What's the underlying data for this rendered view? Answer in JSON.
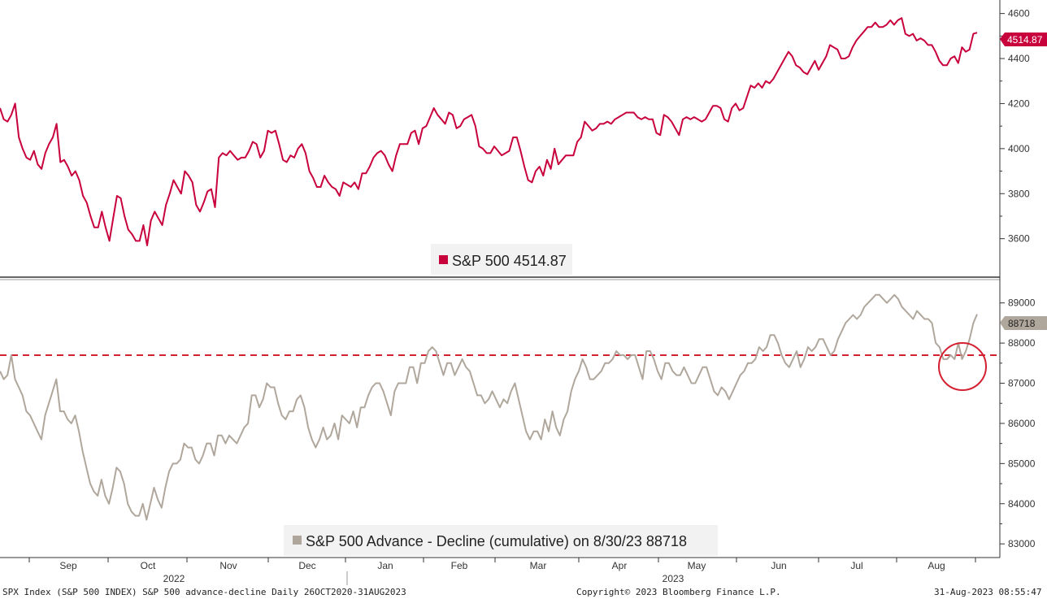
{
  "chart_data": [
    {
      "type": "line",
      "id": "spx",
      "series": [
        {
          "name": "S&P 500",
          "color": "#c8003c",
          "last_value": "4514.87",
          "legend": "S&P 500 4514.87",
          "values": [
            4180,
            4130,
            4120,
            4150,
            4200,
            4050,
            4000,
            3960,
            3950,
            3990,
            3930,
            3910,
            3980,
            4020,
            4050,
            4110,
            3940,
            3950,
            3920,
            3880,
            3900,
            3860,
            3790,
            3760,
            3700,
            3650,
            3650,
            3720,
            3650,
            3590,
            3690,
            3790,
            3780,
            3700,
            3640,
            3620,
            3590,
            3590,
            3660,
            3570,
            3680,
            3720,
            3690,
            3660,
            3750,
            3800,
            3860,
            3830,
            3800,
            3900,
            3880,
            3850,
            3750,
            3720,
            3760,
            3810,
            3820,
            3740,
            3960,
            3980,
            3970,
            3990,
            3970,
            3950,
            3960,
            3960,
            3990,
            4030,
            4020,
            3960,
            3990,
            4080,
            4070,
            4080,
            4020,
            3950,
            3940,
            3970,
            3960,
            4000,
            4020,
            3980,
            3900,
            3870,
            3830,
            3830,
            3880,
            3850,
            3830,
            3820,
            3790,
            3850,
            3840,
            3830,
            3850,
            3820,
            3890,
            3890,
            3920,
            3960,
            3980,
            3990,
            3970,
            3930,
            3900,
            3970,
            4020,
            4020,
            4020,
            4070,
            4080,
            4020,
            4090,
            4100,
            4140,
            4180,
            4150,
            4130,
            4110,
            4160,
            4150,
            4090,
            4100,
            4130,
            4140,
            4150,
            4100,
            4010,
            4000,
            3980,
            3980,
            4010,
            3990,
            3970,
            3980,
            3990,
            4050,
            4050,
            3990,
            3920,
            3860,
            3850,
            3900,
            3920,
            3880,
            3950,
            3910,
            4000,
            3930,
            3950,
            3970,
            3970,
            3970,
            4030,
            4050,
            4120,
            4100,
            4080,
            4090,
            4110,
            4110,
            4120,
            4110,
            4130,
            4140,
            4150,
            4160,
            4160,
            4160,
            4140,
            4130,
            4140,
            4130,
            4130,
            4070,
            4060,
            4150,
            4140,
            4120,
            4090,
            4060,
            4130,
            4140,
            4130,
            4140,
            4130,
            4120,
            4130,
            4160,
            4190,
            4190,
            4180,
            4130,
            4120,
            4180,
            4200,
            4170,
            4180,
            4230,
            4280,
            4270,
            4290,
            4270,
            4300,
            4290,
            4310,
            4340,
            4370,
            4400,
            4430,
            4410,
            4370,
            4360,
            4340,
            4330,
            4360,
            4390,
            4350,
            4380,
            4410,
            4460,
            4450,
            4440,
            4400,
            4400,
            4410,
            4450,
            4480,
            4500,
            4520,
            4540,
            4540,
            4560,
            4540,
            4540,
            4550,
            4570,
            4550,
            4570,
            4580,
            4510,
            4500,
            4510,
            4480,
            4490,
            4480,
            4460,
            4460,
            4430,
            4390,
            4370,
            4370,
            4400,
            4410,
            4380,
            4450,
            4430,
            4440,
            4510,
            4514.87
          ]
        }
      ],
      "ylim": [
        3440,
        4660
      ],
      "yticks": [
        3600,
        3800,
        4000,
        4200,
        4400,
        4600
      ],
      "ytick_labels": [
        "3600",
        "3800",
        "4000",
        "4200",
        "4400",
        "4600"
      ]
    },
    {
      "type": "line",
      "id": "advdecl",
      "series": [
        {
          "name": "S&P 500 Advance - Decline (cumulative)",
          "color": "#b0a79c",
          "last_value": "88718",
          "legend": "S&P 500 Advance - Decline (cumulative) on 8/30/23 88718",
          "values": [
            87300,
            87100,
            87200,
            87700,
            87100,
            86900,
            86700,
            86300,
            86200,
            86000,
            85800,
            85600,
            86200,
            86500,
            86800,
            87100,
            86300,
            86300,
            86100,
            86000,
            86200,
            85800,
            85300,
            84900,
            84500,
            84300,
            84200,
            84600,
            84200,
            84000,
            84400,
            84900,
            84800,
            84500,
            84000,
            83800,
            83700,
            83700,
            84000,
            83600,
            84000,
            84400,
            84100,
            83900,
            84400,
            84800,
            85000,
            85000,
            85100,
            85500,
            85400,
            85400,
            85100,
            85000,
            85200,
            85500,
            85500,
            85200,
            85700,
            85700,
            85500,
            85700,
            85600,
            85500,
            85700,
            85900,
            86000,
            86700,
            86700,
            86400,
            86600,
            87000,
            86900,
            86900,
            86500,
            86200,
            86100,
            86300,
            86300,
            86600,
            86700,
            86400,
            85900,
            85600,
            85400,
            85600,
            85900,
            85600,
            85700,
            86000,
            85600,
            86200,
            86100,
            86000,
            86300,
            85900,
            86400,
            86400,
            86700,
            86900,
            87000,
            87000,
            86800,
            86500,
            86200,
            86800,
            87000,
            87000,
            87000,
            87400,
            87400,
            87000,
            87500,
            87500,
            87800,
            87900,
            87800,
            87500,
            87200,
            87500,
            87500,
            87200,
            87400,
            87600,
            87400,
            87300,
            87000,
            86700,
            86700,
            86500,
            86600,
            86800,
            86600,
            86400,
            86600,
            86500,
            86800,
            87000,
            86600,
            86200,
            85800,
            85600,
            85800,
            85800,
            85600,
            86100,
            85800,
            86300,
            85900,
            85700,
            86100,
            86300,
            86800,
            87100,
            87300,
            87600,
            87400,
            87100,
            87100,
            87200,
            87300,
            87500,
            87500,
            87600,
            87800,
            87700,
            87700,
            87600,
            87700,
            87700,
            87400,
            87100,
            87800,
            87800,
            87600,
            87300,
            87100,
            87500,
            87500,
            87300,
            87200,
            87200,
            87400,
            87200,
            87000,
            87000,
            87200,
            87400,
            87400,
            87100,
            86800,
            86700,
            86900,
            86800,
            86600,
            86800,
            87000,
            87200,
            87300,
            87500,
            87500,
            87600,
            87900,
            87800,
            87900,
            88200,
            88200,
            88000,
            87700,
            87500,
            87400,
            87600,
            87800,
            87400,
            87600,
            87900,
            87800,
            87900,
            88100,
            88100,
            87900,
            87700,
            87800,
            88100,
            88300,
            88500,
            88600,
            88700,
            88600,
            88700,
            88900,
            89000,
            89100,
            89200,
            89200,
            89100,
            89000,
            89100,
            89200,
            89100,
            88900,
            88800,
            88700,
            88600,
            88800,
            88700,
            88600,
            88600,
            88500,
            88000,
            87900,
            87600,
            87600,
            87700,
            87600,
            88000,
            87600,
            87800,
            88100,
            88500,
            88718
          ]
        }
      ],
      "ylim": [
        82700,
        89500
      ],
      "yticks": [
        83000,
        84000,
        85000,
        86000,
        87000,
        88000,
        89000
      ],
      "ytick_labels": [
        "83000",
        "84000",
        "85000",
        "86000",
        "87000",
        "88000",
        "89000"
      ],
      "annotations": {
        "hline": 87700,
        "circle_highlight": true
      }
    }
  ],
  "xaxis": {
    "months": [
      "Sep",
      "Oct",
      "Nov",
      "Dec",
      "Jan",
      "Feb",
      "Mar",
      "Apr",
      "May",
      "Jun",
      "Jul",
      "Aug"
    ],
    "years": [
      "2022",
      "2023"
    ]
  },
  "footer": {
    "left": "SPX Index (S&P 500 INDEX) S&P 500 advance-decline  Daily 26OCT2020-31AUG2023",
    "center": "Copyright© 2023 Bloomberg Finance L.P.",
    "right": "31-Aug-2023 08:55:47"
  }
}
